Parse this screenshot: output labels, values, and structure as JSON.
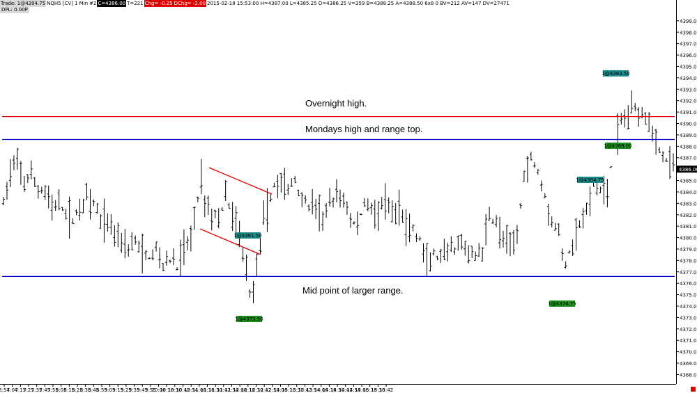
{
  "header": {
    "trade": "Trade: 1@4394.75",
    "symbol": "NQH5 [CV]",
    "interval": "1 Min",
    "chart_no": "#2",
    "close": "C=4386.00",
    "ticks": "T=221",
    "chg": "Chg= -0.25",
    "dchg": "DChg= -2.00",
    "bar_info": "2015-02-18 15:53:00 H=4387.00 L=4385.25 O=4386.25 V=359 B=4388.25 A=4388.50 6x8 0 BV=212 AV=147 DV=27471",
    "dpl": "DPL: 0.00P"
  },
  "annotations": {
    "overnight": "Overnight high.",
    "monday": "Mondays high and range top.",
    "mid": "Mid point of larger range."
  },
  "chart_data": {
    "type": "line",
    "title": "",
    "x_tick_labels": [
      "6:54",
      "7:04",
      "7:15",
      "7:25",
      "7:35",
      "7:45",
      "7:55",
      "8:05",
      "8:15",
      "8:25",
      "8:35",
      "8:45",
      "8:55",
      "9:05",
      "9:15",
      "9:25",
      "9:35",
      "9:45",
      "9:55",
      "10:06",
      "10:18",
      "10:30",
      "10:42",
      "10:54",
      "11:06",
      "11:18",
      "11:30",
      "11:42",
      "11:54",
      "12:06",
      "12:18",
      "12:30",
      "12:42",
      "12:54",
      "13:06",
      "13:18",
      "13:30",
      "13:42",
      "13:54",
      "14:06",
      "14:18",
      "14:30",
      "14:42",
      "14:54",
      "15:06",
      "15:18",
      "15:30",
      "15:42"
    ],
    "y_tick_labels": [
      "4368.00",
      "4369.00",
      "4370.00",
      "4371.00",
      "4372.00",
      "4373.00",
      "4374.00",
      "4375.00",
      "4376.00",
      "4377.00",
      "4378.00",
      "4379.00",
      "4380.00",
      "4381.00",
      "4382.00",
      "4383.00",
      "4384.00",
      "4385.00",
      "4386.00",
      "4387.00",
      "4388.00",
      "4389.00",
      "4390.00",
      "4391.00",
      "4392.00",
      "4393.00",
      "4394.00",
      "4395.00",
      "4396.00",
      "4397.00",
      "4398.00",
      "4399.00"
    ],
    "ylim": [
      4367.6,
      4399.6
    ],
    "last_price": "4386.00",
    "horizontal_lines": [
      {
        "label": "Overnight high.",
        "price": 4390.6,
        "color": "#e00000"
      },
      {
        "label": "Mondays high and range top.",
        "price": 4388.6,
        "color": "#0000cc"
      },
      {
        "label": "Mid point of larger range.",
        "price": 4376.6,
        "color": "#0000cc"
      }
    ],
    "price_path": [
      [
        0,
        4383.0
      ],
      [
        2,
        4385.8
      ],
      [
        4,
        4386.2
      ],
      [
        6,
        4385.0
      ],
      [
        8,
        4385.2
      ],
      [
        10,
        4384.2
      ],
      [
        12,
        4384.0
      ],
      [
        14,
        4382.8
      ],
      [
        16,
        4382.6
      ],
      [
        18,
        4382.3
      ],
      [
        20,
        4381.2
      ],
      [
        22,
        4383.0
      ],
      [
        24,
        4383.3
      ],
      [
        26,
        4382.8
      ],
      [
        28,
        4381.5
      ],
      [
        30,
        4381.4
      ],
      [
        32,
        4380.5
      ],
      [
        34,
        4380.0
      ],
      [
        36,
        4379.2
      ],
      [
        38,
        4379.6
      ],
      [
        40,
        4378.6
      ],
      [
        42,
        4378.2
      ],
      [
        44,
        4379.0
      ],
      [
        46,
        4377.6
      ],
      [
        48,
        4378.0
      ],
      [
        50,
        4377.4
      ],
      [
        52,
        4379.0
      ],
      [
        54,
        4380.0
      ],
      [
        56,
        4383.5
      ],
      [
        57,
        4385.2
      ],
      [
        58,
        4383.5
      ],
      [
        60,
        4382.0
      ],
      [
        62,
        4381.8
      ],
      [
        64,
        4383.5
      ],
      [
        66,
        4382.0
      ],
      [
        68,
        4380.2
      ],
      [
        69,
        4378.8
      ],
      [
        70,
        4377.5
      ],
      [
        71,
        4375.0
      ],
      [
        72,
        4376.0
      ],
      [
        73,
        4377.6
      ],
      [
        74,
        4380.0
      ],
      [
        76,
        4382.5
      ],
      [
        78,
        4384.5
      ],
      [
        80,
        4385.0
      ],
      [
        82,
        4384.2
      ],
      [
        84,
        4385.0
      ],
      [
        86,
        4383.4
      ],
      [
        88,
        4382.8
      ],
      [
        90,
        4382.5
      ],
      [
        92,
        4381.8
      ],
      [
        94,
        4382.8
      ],
      [
        96,
        4383.5
      ],
      [
        98,
        4383.6
      ],
      [
        100,
        4381.5
      ],
      [
        102,
        4381.0
      ],
      [
        104,
        4383.0
      ],
      [
        106,
        4382.8
      ],
      [
        108,
        4382.0
      ],
      [
        110,
        4383.0
      ],
      [
        112,
        4381.8
      ],
      [
        114,
        4382.5
      ],
      [
        116,
        4381.2
      ],
      [
        118,
        4380.6
      ],
      [
        120,
        4379.8
      ],
      [
        122,
        4377.6
      ],
      [
        124,
        4378.5
      ],
      [
        126,
        4377.8
      ],
      [
        128,
        4378.5
      ],
      [
        130,
        4379.0
      ],
      [
        132,
        4379.2
      ],
      [
        134,
        4378.6
      ],
      [
        136,
        4378.4
      ],
      [
        138,
        4379.0
      ],
      [
        140,
        4382.0
      ],
      [
        142,
        4381.2
      ],
      [
        144,
        4380.0
      ],
      [
        146,
        4378.8
      ],
      [
        148,
        4380.5
      ],
      [
        150,
        4385.5
      ],
      [
        152,
        4387.0
      ],
      [
        154,
        4386.0
      ],
      [
        156,
        4383.8
      ],
      [
        158,
        4381.5
      ],
      [
        160,
        4380.2
      ],
      [
        161,
        4378.5
      ],
      [
        162,
        4377.8
      ],
      [
        164,
        4379.5
      ],
      [
        166,
        4381.2
      ],
      [
        168,
        4382.0
      ],
      [
        170,
        4384.5
      ],
      [
        172,
        4384.0
      ],
      [
        174,
        4384.4
      ],
      [
        176,
        4388.0
      ],
      [
        178,
        4390.0
      ],
      [
        180,
        4391.0
      ],
      [
        182,
        4391.5
      ],
      [
        184,
        4391.2
      ],
      [
        186,
        4390.5
      ],
      [
        188,
        4388.3
      ],
      [
        190,
        4387.2
      ],
      [
        192,
        4386.5
      ],
      [
        193,
        4386.0
      ]
    ]
  },
  "labels": {
    "label_1": "1@4381.50",
    "label_2": "1@4373.50",
    "label_3": "1@4374.75",
    "label_4": "1@4384.75",
    "label_5": "1@4388.00",
    "label_6": "1@4393.50"
  }
}
